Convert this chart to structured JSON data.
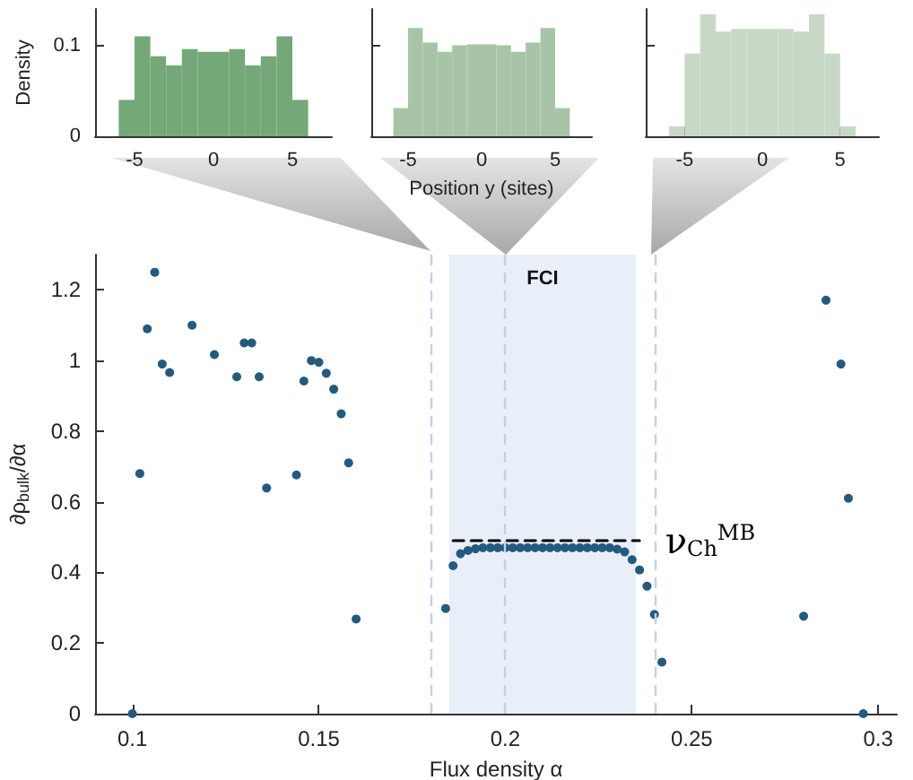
{
  "chart_data": [
    {
      "type": "histogram",
      "ylabel": "Density",
      "bins": [
        -6,
        -5,
        -4,
        -3,
        -2,
        -1,
        0,
        1,
        2,
        3,
        4,
        5,
        6
      ],
      "values": [
        0.04,
        0.11,
        0.088,
        0.078,
        0.096,
        0.093,
        0.093,
        0.096,
        0.078,
        0.088,
        0.11,
        0.04
      ],
      "color": "#74a878",
      "xlim": [
        -7.5,
        7.5
      ],
      "xticks": [
        -5,
        0,
        5
      ],
      "ylim": [
        0,
        0.14
      ],
      "yticks": [
        0,
        0.1
      ],
      "grid": false
    },
    {
      "type": "histogram",
      "xlabel": "Position y (sites)",
      "bins": [
        -6,
        -5,
        -4,
        -3,
        -2,
        -1,
        0,
        1,
        2,
        3,
        4,
        5,
        6
      ],
      "values": [
        0.031,
        0.119,
        0.103,
        0.093,
        0.1,
        0.101,
        0.101,
        0.1,
        0.093,
        0.103,
        0.119,
        0.031
      ],
      "color": "#a8c4a6",
      "xlim": [
        -7.5,
        7.5
      ],
      "xticks": [
        -5,
        0,
        5
      ],
      "ylim": [
        0,
        0.14
      ],
      "yticks": [
        0,
        0.1
      ],
      "tick_labels": "x",
      "grid": false
    },
    {
      "type": "histogram",
      "bins": [
        -6,
        -5,
        -4,
        -3,
        -2,
        -1,
        0,
        1,
        2,
        3,
        4,
        5,
        6
      ],
      "values": [
        0.011,
        0.091,
        0.134,
        0.115,
        0.118,
        0.118,
        0.118,
        0.118,
        0.115,
        0.134,
        0.091,
        0.011
      ],
      "color": "#c8d8c6",
      "xlim": [
        -7.5,
        7.5
      ],
      "xticks": [
        -5,
        0,
        5
      ],
      "ylim": [
        0,
        0.14
      ],
      "yticks": [
        0,
        0.1
      ],
      "tick_labels": "x",
      "grid": false
    },
    {
      "type": "scatter",
      "xlabel": "Flux density α",
      "ylabel": "∂ρ$_{bulk}$/∂α",
      "xlim": [
        0.09,
        0.305
      ],
      "xticks": [
        0.1,
        0.15,
        0.2,
        0.25,
        0.3
      ],
      "ylim": [
        0,
        1.3
      ],
      "yticks": [
        0,
        0.2,
        0.4,
        0.6,
        0.8,
        1,
        1.2
      ],
      "grid": false,
      "marker": "circle",
      "series": [
        {
          "type": "scatter",
          "color": "#245a80",
          "x": [
            0.1,
            0.102,
            0.104,
            0.106,
            0.108,
            0.11,
            0.116,
            0.122,
            0.128,
            0.13,
            0.132,
            0.134,
            0.136,
            0.144,
            0.146,
            0.148,
            0.15,
            0.152,
            0.154,
            0.156,
            0.158,
            0.16,
            0.184,
            0.186,
            0.188,
            0.19,
            0.192,
            0.194,
            0.196,
            0.198,
            0.2,
            0.202,
            0.204,
            0.206,
            0.208,
            0.21,
            0.212,
            0.214,
            0.216,
            0.218,
            0.22,
            0.222,
            0.224,
            0.226,
            0.228,
            0.23,
            0.232,
            0.234,
            0.236,
            0.238,
            0.24,
            0.242,
            0.28,
            0.286,
            0.29,
            0.292,
            0.296
          ],
          "values": [
            0,
            0.68,
            1.09,
            1.25,
            0.99,
            0.966,
            1.1,
            1.017,
            0.954,
            1.05,
            1.05,
            0.954,
            0.639,
            0.676,
            0.942,
            1.0,
            0.995,
            0.964,
            0.919,
            0.849,
            0.71,
            0.268,
            0.298,
            0.419,
            0.453,
            0.462,
            0.467,
            0.47,
            0.47,
            0.47,
            0.47,
            0.47,
            0.47,
            0.47,
            0.47,
            0.47,
            0.47,
            0.47,
            0.47,
            0.47,
            0.47,
            0.47,
            0.47,
            0.47,
            0.47,
            0.466,
            0.458,
            0.436,
            0.407,
            0.361,
            0.281,
            0.146,
            0.276,
            1.171,
            0.99,
            0.61,
            0
          ]
        },
        {
          "type": "line",
          "color": "#000000",
          "line_style": "dashed",
          "marker": "none",
          "x": [
            0.186,
            0.236
          ],
          "values": [
            0.49,
            0.49
          ]
        }
      ],
      "ref_lines": [
        {
          "axis": "x",
          "value": 0.18,
          "color": "#c2d0e8",
          "line_style": "dashed"
        },
        {
          "axis": "x",
          "value": 0.2,
          "color": "#c2d0e8",
          "line_style": "dashed"
        },
        {
          "axis": "x",
          "value": 0.24,
          "color": "#c2d0e8",
          "line_style": "dashed"
        }
      ],
      "bands": [
        {
          "axis": "x",
          "from": 0.185,
          "to": 0.235,
          "label": "FCI",
          "color": "#e9eff8"
        }
      ],
      "annotations": [
        {
          "text": "ν$_{Ch}$$^{MB}$",
          "x": 0.24,
          "y": 0.49
        }
      ]
    }
  ]
}
